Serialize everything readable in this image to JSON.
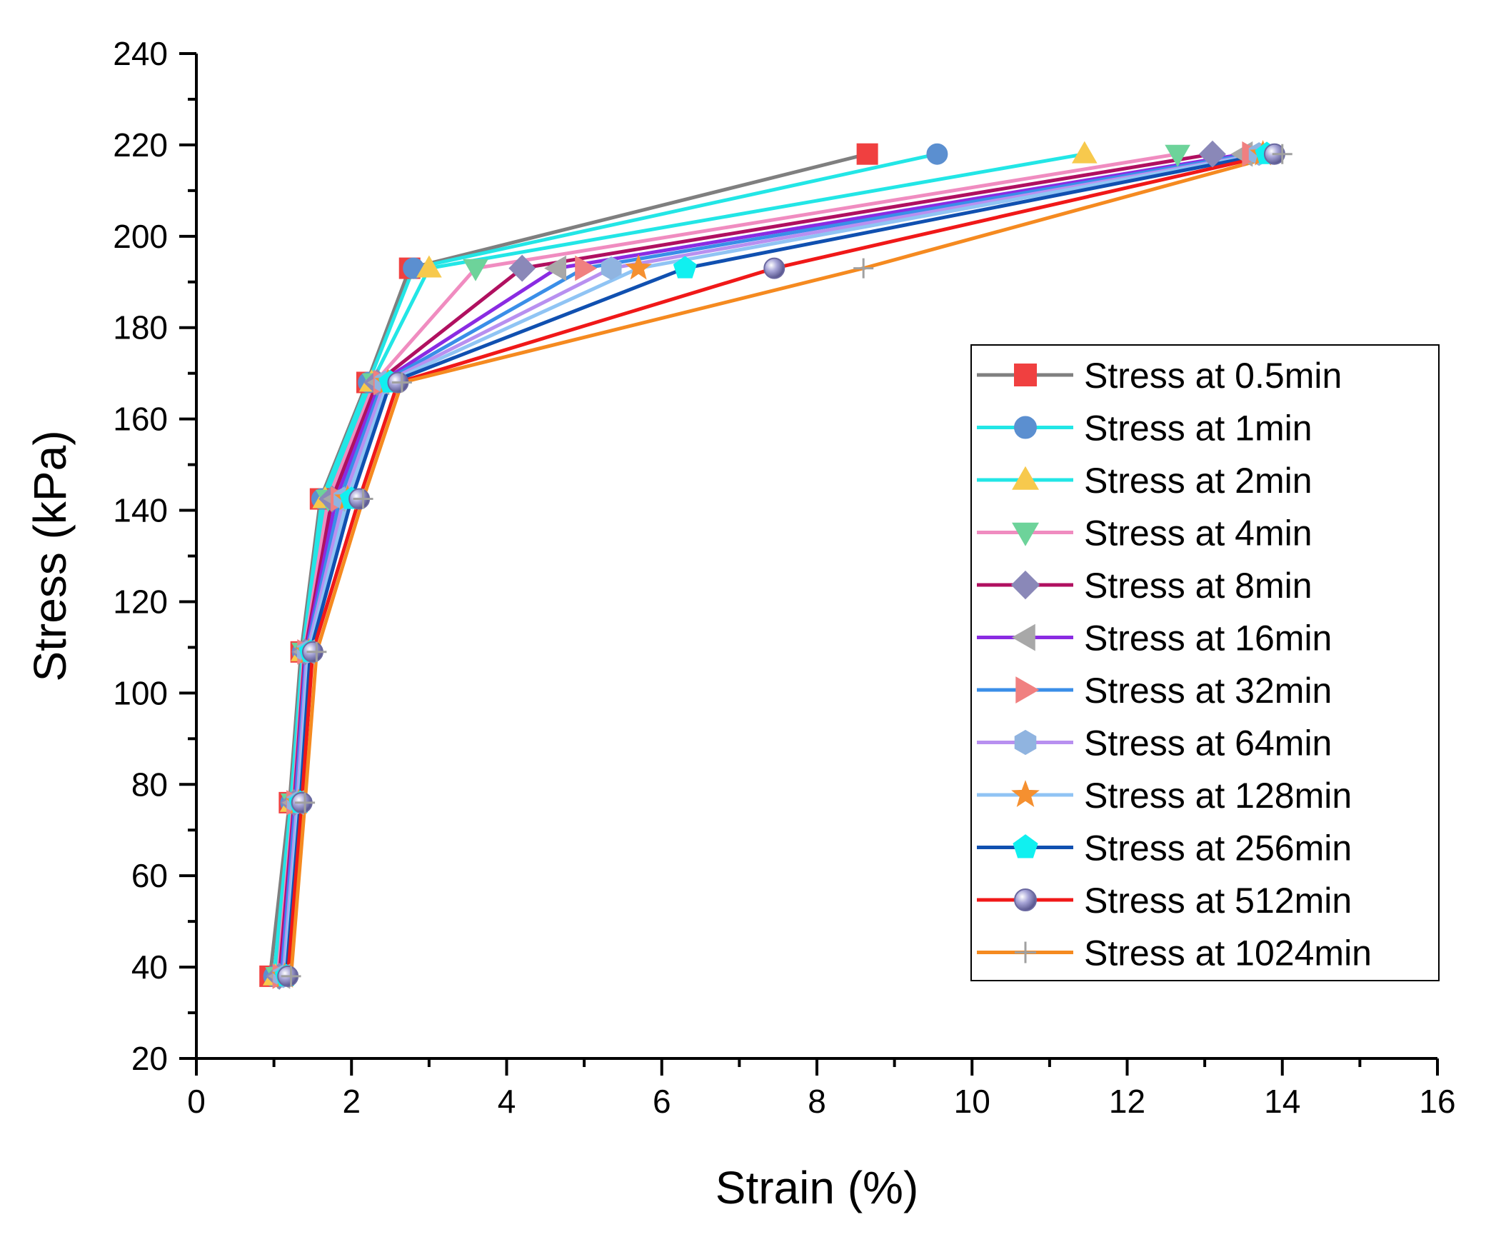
{
  "chart_data": {
    "type": "line",
    "title": "",
    "xlabel": "Strain (%)",
    "ylabel": "Stress (kPa)",
    "xlim": [
      0,
      16
    ],
    "ylim": [
      20,
      240
    ],
    "xticks": [
      0,
      2,
      4,
      6,
      8,
      10,
      12,
      14,
      16
    ],
    "yticks": [
      20,
      40,
      60,
      80,
      100,
      120,
      140,
      160,
      180,
      200,
      220,
      240
    ],
    "grid": false,
    "legend_position": "right",
    "stress_levels": [
      38,
      76,
      109,
      142.5,
      168,
      193,
      218
    ],
    "series": [
      {
        "name": "Stress at 0.5min",
        "line_color": "#7f7f7f",
        "marker": "square",
        "marker_color": "#f04040",
        "x": [
          0.95,
          1.2,
          1.35,
          1.6,
          2.2,
          2.75,
          8.65
        ],
        "y": [
          38,
          76,
          109,
          142.5,
          168,
          193,
          218
        ]
      },
      {
        "name": "Stress at 1min",
        "line_color": "#22e6e6",
        "marker": "circle",
        "marker_color": "#5b8fd0",
        "x": [
          1.0,
          1.22,
          1.37,
          1.62,
          2.22,
          2.8,
          9.55
        ],
        "y": [
          38,
          76,
          109,
          142.5,
          168,
          193,
          218
        ]
      },
      {
        "name": "Stress at 2min",
        "line_color": "#22e6e6",
        "marker": "triangle-up",
        "marker_color": "#f7c94d",
        "x": [
          1.02,
          1.24,
          1.38,
          1.66,
          2.26,
          3.0,
          11.45
        ],
        "y": [
          38,
          76,
          109,
          142.5,
          168,
          193,
          218
        ]
      },
      {
        "name": "Stress at 4min",
        "line_color": "#f08cc0",
        "marker": "triangle-down",
        "marker_color": "#6dd39a",
        "x": [
          1.05,
          1.25,
          1.39,
          1.7,
          2.3,
          3.6,
          12.65
        ],
        "y": [
          38,
          76,
          109,
          142.5,
          168,
          193,
          218
        ]
      },
      {
        "name": "Stress at 8min",
        "line_color": "#b01060",
        "marker": "diamond",
        "marker_color": "#8a88b8",
        "x": [
          1.07,
          1.26,
          1.4,
          1.75,
          2.33,
          4.2,
          13.1
        ],
        "y": [
          38,
          76,
          109,
          142.5,
          168,
          193,
          218
        ]
      },
      {
        "name": "Stress at 16min",
        "line_color": "#8a2be2",
        "marker": "triangle-left",
        "marker_color": "#a8a8a8",
        "x": [
          1.09,
          1.27,
          1.41,
          1.8,
          2.37,
          4.65,
          13.5
        ],
        "y": [
          38,
          76,
          109,
          142.5,
          168,
          193,
          218
        ]
      },
      {
        "name": "Stress at 32min",
        "line_color": "#3a8ee8",
        "marker": "triangle-right",
        "marker_color": "#f08080",
        "x": [
          1.1,
          1.28,
          1.42,
          1.85,
          2.4,
          5.0,
          13.6
        ],
        "y": [
          38,
          76,
          109,
          142.5,
          168,
          193,
          218
        ]
      },
      {
        "name": "Stress at 64min",
        "line_color": "#b890f0",
        "marker": "hexagon",
        "marker_color": "#90b4e0",
        "x": [
          1.12,
          1.3,
          1.43,
          1.9,
          2.43,
          5.35,
          13.7
        ],
        "y": [
          38,
          76,
          109,
          142.5,
          168,
          193,
          218
        ]
      },
      {
        "name": "Stress at 128min",
        "line_color": "#90c4f4",
        "marker": "star",
        "marker_color": "#f59030",
        "x": [
          1.14,
          1.32,
          1.45,
          1.95,
          2.47,
          5.7,
          13.75
        ],
        "y": [
          38,
          76,
          109,
          142.5,
          168,
          193,
          218
        ]
      },
      {
        "name": "Stress at 256min",
        "line_color": "#1050b0",
        "marker": "pentagon",
        "marker_color": "#10f0f0",
        "x": [
          1.16,
          1.34,
          1.47,
          2.0,
          2.5,
          6.3,
          13.8
        ],
        "y": [
          38,
          76,
          109,
          142.5,
          168,
          193,
          218
        ]
      },
      {
        "name": "Stress at 512min",
        "line_color": "#f01818",
        "marker": "sphere",
        "marker_color": "#9a98cc",
        "x": [
          1.18,
          1.36,
          1.5,
          2.1,
          2.6,
          7.45,
          13.9
        ],
        "y": [
          38,
          76,
          109,
          142.5,
          168,
          193,
          218
        ]
      },
      {
        "name": "Stress at 1024min",
        "line_color": "#f58a20",
        "marker": "plus",
        "marker_color": "#a0a0a0",
        "x": [
          1.22,
          1.4,
          1.55,
          2.15,
          2.65,
          8.6,
          14.0
        ],
        "y": [
          38,
          76,
          109,
          142.5,
          168,
          193,
          218
        ]
      }
    ]
  }
}
